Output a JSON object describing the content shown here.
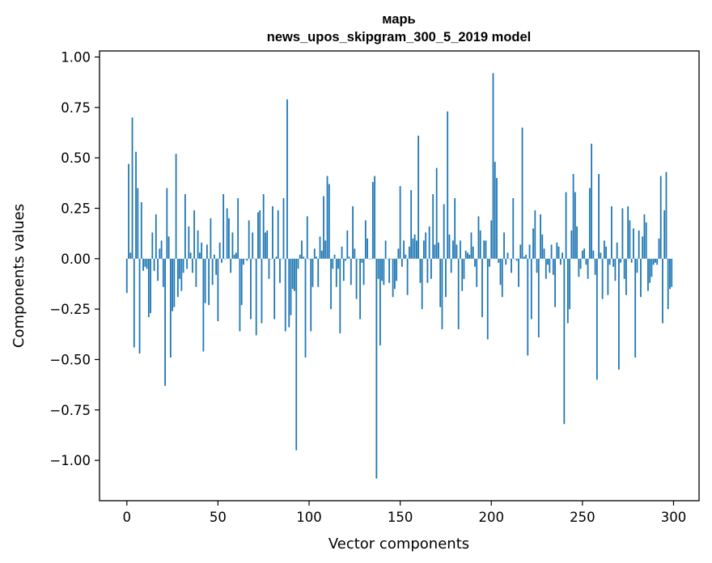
{
  "chart_data": {
    "type": "bar",
    "title": "марь",
    "subtitle": "news_upos_skipgram_300_5_2019 model",
    "xlabel": "Vector components",
    "ylabel": "Components values",
    "xlim": [
      -15,
      314
    ],
    "ylim": [
      -1.2,
      1.03
    ],
    "x_ticks": [
      0,
      50,
      100,
      150,
      200,
      250,
      300
    ],
    "x_tick_labels": [
      "0",
      "50",
      "100",
      "150",
      "200",
      "250",
      "300"
    ],
    "y_ticks": [
      1.0,
      0.75,
      0.5,
      0.25,
      0.0,
      -0.25,
      -0.5,
      -0.75,
      -1.0
    ],
    "y_tick_labels": [
      "1.00",
      "0.75",
      "0.50",
      "0.25",
      "0.00",
      "−0.25",
      "−0.50",
      "−0.75",
      "−1.00"
    ],
    "grid": false,
    "bar_color": "#1f77b4",
    "series": [
      {
        "values": [
          -0.17,
          0.47,
          0.03,
          0.7,
          -0.44,
          0.53,
          0.35,
          -0.47,
          0.28,
          -0.06,
          -0.04,
          -0.05,
          -0.29,
          -0.27,
          0.13,
          -0.06,
          0.22,
          -0.11,
          0.05,
          0.09,
          -0.14,
          -0.63,
          0.35,
          0.11,
          -0.49,
          -0.26,
          -0.24,
          0.52,
          -0.19,
          -0.1,
          -0.16,
          -0.07,
          0.32,
          -0.05,
          0.16,
          0.03,
          -0.07,
          0.24,
          -0.14,
          0.14,
          0.03,
          0.08,
          -0.46,
          -0.22,
          0.07,
          -0.23,
          0.2,
          -0.13,
          0.02,
          -0.08,
          -0.31,
          0.08,
          -0.02,
          0.32,
          0.0,
          0.25,
          0.2,
          -0.07,
          0.13,
          0.02,
          0.03,
          0.3,
          -0.36,
          -0.23,
          -0.03,
          0.0,
          -0.01,
          0.19,
          -0.3,
          0.13,
          0.0,
          -0.38,
          0.23,
          0.24,
          -0.32,
          0.32,
          0.13,
          0.14,
          -0.1,
          0.0,
          0.26,
          -0.3,
          0.01,
          0.24,
          -0.12,
          0.0,
          0.3,
          -0.36,
          0.79,
          -0.34,
          -0.28,
          -0.15,
          -0.16,
          -0.95,
          -0.05,
          0.02,
          0.09,
          0.01,
          -0.49,
          0.21,
          0.0,
          -0.36,
          -0.14,
          0.05,
          0.01,
          -0.14,
          0.11,
          0.04,
          0.31,
          0.09,
          0.41,
          0.37,
          -0.25,
          -0.05,
          0.02,
          -0.14,
          -0.05,
          -0.37,
          0.06,
          -0.11,
          -0.01,
          0.14,
          0.01,
          -0.13,
          0.26,
          0.05,
          -0.2,
          0.0,
          -0.3,
          -0.02,
          -0.13,
          0.19,
          0.1,
          0.0,
          0.0,
          0.38,
          0.41,
          -1.09,
          -0.1,
          -0.43,
          -0.11,
          -0.13,
          0.09,
          0.0,
          -0.12,
          0.0,
          -0.19,
          -0.15,
          -0.11,
          0.05,
          0.36,
          -0.04,
          0.09,
          0.02,
          -0.18,
          0.06,
          0.34,
          0.1,
          0.12,
          0.09,
          0.61,
          -0.12,
          -0.25,
          0.09,
          0.13,
          -0.12,
          0.16,
          -0.1,
          0.32,
          0.07,
          0.45,
          0.08,
          -0.24,
          -0.35,
          0.27,
          -0.19,
          0.73,
          0.12,
          -0.07,
          0.09,
          0.3,
          0.07,
          -0.35,
          0.09,
          -0.16,
          -0.1,
          0.04,
          0.03,
          0.02,
          0.13,
          0.06,
          -0.04,
          -0.14,
          0.21,
          0.14,
          -0.29,
          0.09,
          0.09,
          -0.4,
          -0.04,
          0.19,
          0.92,
          0.48,
          0.4,
          -0.02,
          -0.13,
          -0.19,
          0.13,
          -0.03,
          0.03,
          0.0,
          -0.07,
          0.3,
          0.0,
          -0.01,
          -0.14,
          0.07,
          0.65,
          0.01,
          0.02,
          -0.48,
          0.07,
          -0.3,
          0.15,
          0.24,
          -0.07,
          -0.39,
          0.22,
          0.12,
          0.05,
          -0.1,
          -0.03,
          -0.07,
          0.07,
          -0.08,
          -0.24,
          0.08,
          0.06,
          -0.03,
          0.03,
          -0.82,
          0.33,
          -0.32,
          -0.25,
          0.14,
          0.42,
          0.33,
          0.16,
          -0.09,
          -0.05,
          0.04,
          0.05,
          -0.03,
          -0.1,
          0.35,
          0.57,
          0.04,
          -0.08,
          -0.6,
          0.42,
          0.03,
          -0.2,
          0.09,
          0.06,
          -0.18,
          -0.03,
          0.26,
          -0.04,
          -0.11,
          0.08,
          -0.55,
          -0.02,
          0.25,
          -0.1,
          -0.18,
          0.26,
          0.19,
          -0.02,
          0.15,
          -0.49,
          -0.07,
          0.14,
          -0.19,
          0.11,
          0.22,
          0.18,
          -0.16,
          -0.12,
          -0.09,
          -0.03,
          -0.02,
          -0.03,
          0.1,
          0.41,
          -0.32,
          0.24,
          0.43,
          -0.25,
          -0.15,
          -0.14
        ]
      }
    ]
  }
}
